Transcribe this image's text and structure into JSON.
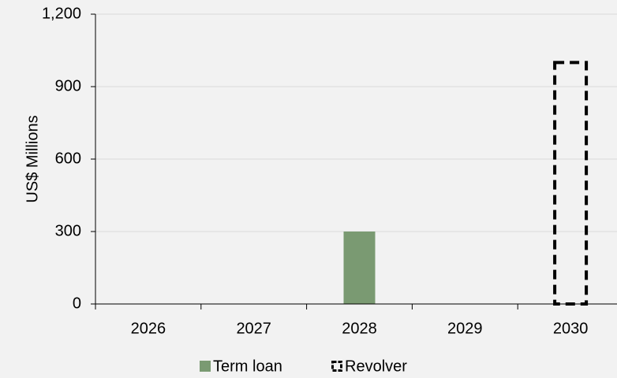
{
  "chart_data": {
    "type": "bar",
    "categories": [
      "2026",
      "2027",
      "2028",
      "2029",
      "2030"
    ],
    "series": [
      {
        "name": "Term loan",
        "values": [
          0,
          0,
          300,
          0,
          0
        ],
        "color": "#7a9a72",
        "style": "solid"
      },
      {
        "name": "Revolver",
        "values": [
          0,
          0,
          0,
          0,
          1000
        ],
        "color": "#000000",
        "style": "dashed-outline"
      }
    ],
    "ylabel": "US$ Millions",
    "ylim": [
      0,
      1200
    ],
    "yticks": [
      0,
      300,
      600,
      900,
      1200
    ],
    "ytick_labels": [
      "0",
      "300",
      "600",
      "900",
      "1,200"
    ],
    "grid": true,
    "legend_position": "bottom"
  }
}
